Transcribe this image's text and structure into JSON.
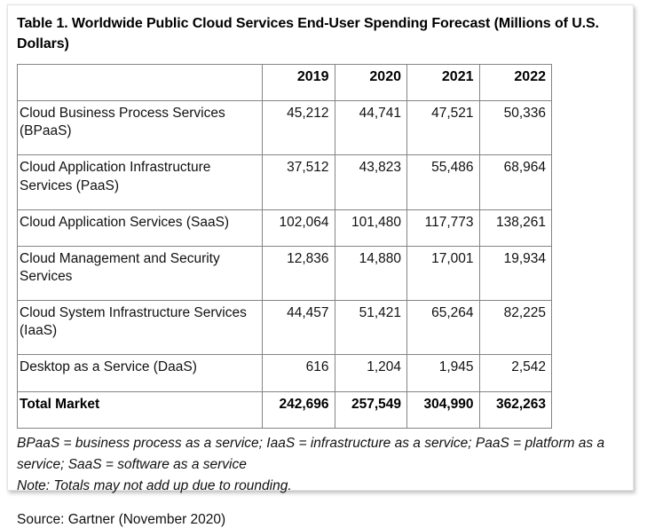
{
  "page": {
    "title": "Table 1. Worldwide Public Cloud Services End-User Spending Forecast (Millions of U.S. Dollars)"
  },
  "chart_data": {
    "type": "table",
    "title": "Table 1. Worldwide Public Cloud Services End-User Spending Forecast (Millions of U.S. Dollars)",
    "columns": [
      "",
      "2019",
      "2020",
      "2021",
      "2022"
    ],
    "rows": [
      {
        "label": "Cloud Business Process Services (BPaaS)",
        "values": [
          "45,212",
          "44,741",
          "47,521",
          "50,336"
        ]
      },
      {
        "label": "Cloud Application Infrastructure Services (PaaS)",
        "values": [
          "37,512",
          "43,823",
          "55,486",
          "68,964"
        ]
      },
      {
        "label": "Cloud Application Services (SaaS)",
        "values": [
          "102,064",
          "101,480",
          "117,773",
          "138,261"
        ]
      },
      {
        "label": "Cloud Management and Security Services",
        "values": [
          "12,836",
          "14,880",
          "17,001",
          "19,934"
        ]
      },
      {
        "label": "Cloud System Infrastructure Services (IaaS)",
        "values": [
          "44,457",
          "51,421",
          "65,264",
          "82,225"
        ]
      },
      {
        "label": "Desktop as a Service (DaaS)",
        "values": [
          "616",
          "1,204",
          "1,945",
          "2,542"
        ]
      },
      {
        "label": "Total Market",
        "values": [
          "242,696",
          "257,549",
          "304,990",
          "362,263"
        ],
        "emphasis": "bold"
      }
    ],
    "footnotes": [
      "BPaaS = business process as a service; IaaS = infrastructure as a service; PaaS = platform as a service; SaaS = software as a service",
      "Note: Totals may not add up due to rounding."
    ],
    "source": "Source: Gartner (November 2020)"
  }
}
